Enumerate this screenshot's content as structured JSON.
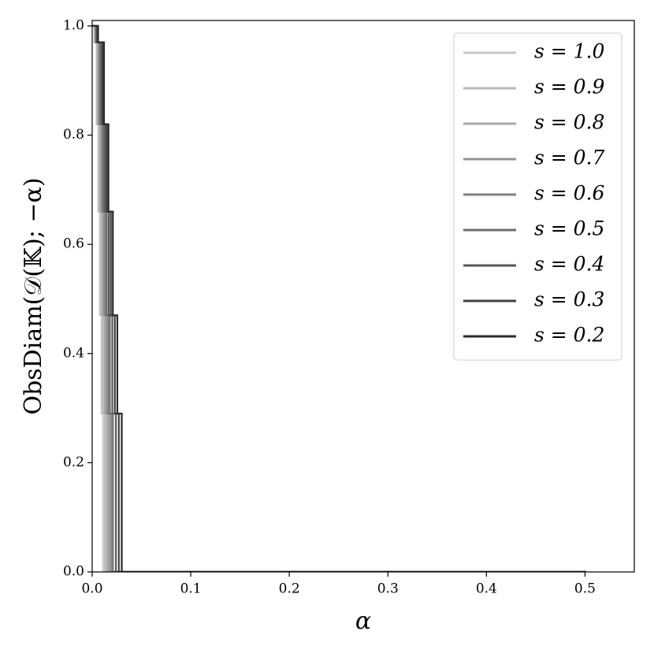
{
  "chart_data": {
    "type": "step",
    "xlabel": "α",
    "ylabel": "ObsDiam(𝒟(𝕂); −α)",
    "xlim": [
      0,
      0.55
    ],
    "ylim": [
      0,
      1.01
    ],
    "xticks": [
      {
        "value": 0,
        "label": "0.0"
      },
      {
        "value": 0.1,
        "label": "0.1"
      },
      {
        "value": 0.2,
        "label": "0.2"
      },
      {
        "value": 0.3,
        "label": "0.3"
      },
      {
        "value": 0.4,
        "label": "0.4"
      },
      {
        "value": 0.5,
        "label": "0.5"
      }
    ],
    "yticks": [
      {
        "value": 0,
        "label": "0.0"
      },
      {
        "value": 0.2,
        "label": "0.2"
      },
      {
        "value": 0.4,
        "label": "0.4"
      },
      {
        "value": 0.6,
        "label": "0.6"
      },
      {
        "value": 0.8,
        "label": "0.8"
      },
      {
        "value": 1.0,
        "label": "1.0"
      }
    ],
    "legend": "upper right",
    "series": [
      {
        "name": "s = 1.0",
        "color": "#c8c8c8",
        "x": [
          0,
          0.0022,
          0.0044,
          0.0061,
          0.0077,
          0.0094,
          0.011,
          0.5
        ],
        "values": [
          1.0,
          0.97,
          0.82,
          0.66,
          0.47,
          0.29,
          0.0,
          0.0
        ]
      },
      {
        "name": "s = 0.9",
        "color": "#b8b8b8",
        "x": [
          0,
          0.0026,
          0.0052,
          0.0072,
          0.0091,
          0.011,
          0.013,
          0.5
        ],
        "values": [
          1.0,
          0.97,
          0.82,
          0.66,
          0.47,
          0.29,
          0.0,
          0.0
        ]
      },
      {
        "name": "s = 0.8",
        "color": "#a8a8a8",
        "x": [
          0,
          0.003,
          0.006,
          0.0083,
          0.0105,
          0.0128,
          0.015,
          0.5
        ],
        "values": [
          1.0,
          0.97,
          0.82,
          0.66,
          0.47,
          0.29,
          0.0,
          0.0
        ]
      },
      {
        "name": "s = 0.7",
        "color": "#949494",
        "x": [
          0,
          0.0034,
          0.0068,
          0.0094,
          0.0119,
          0.0145,
          0.017,
          0.5
        ],
        "values": [
          1.0,
          0.97,
          0.82,
          0.66,
          0.47,
          0.29,
          0.0,
          0.0
        ]
      },
      {
        "name": "s = 0.6",
        "color": "#808080",
        "x": [
          0,
          0.0038,
          0.0076,
          0.0105,
          0.0133,
          0.0162,
          0.019,
          0.5
        ],
        "values": [
          1.0,
          0.97,
          0.82,
          0.66,
          0.47,
          0.29,
          0.0,
          0.0
        ]
      },
      {
        "name": "s = 0.5",
        "color": "#6c6c6c",
        "x": [
          0,
          0.0042,
          0.0084,
          0.0116,
          0.0147,
          0.0179,
          0.021,
          0.5
        ],
        "values": [
          1.0,
          0.97,
          0.82,
          0.66,
          0.47,
          0.29,
          0.0,
          0.0
        ]
      },
      {
        "name": "s = 0.4",
        "color": "#585858",
        "x": [
          0,
          0.0048,
          0.0096,
          0.0132,
          0.0168,
          0.0204,
          0.024,
          0.5
        ],
        "values": [
          1.0,
          0.97,
          0.82,
          0.66,
          0.47,
          0.29,
          0.0,
          0.0
        ]
      },
      {
        "name": "s = 0.3",
        "color": "#404040",
        "x": [
          0,
          0.0054,
          0.0108,
          0.0149,
          0.0189,
          0.023,
          0.027,
          0.5
        ],
        "values": [
          1.0,
          0.97,
          0.82,
          0.66,
          0.47,
          0.29,
          0.0,
          0.0
        ]
      },
      {
        "name": "s = 0.2",
        "color": "#2a2a2a",
        "x": [
          0,
          0.006,
          0.012,
          0.0165,
          0.021,
          0.0255,
          0.03,
          0.5
        ],
        "values": [
          1.0,
          0.97,
          0.82,
          0.66,
          0.47,
          0.29,
          0.0,
          0.0
        ]
      }
    ]
  }
}
